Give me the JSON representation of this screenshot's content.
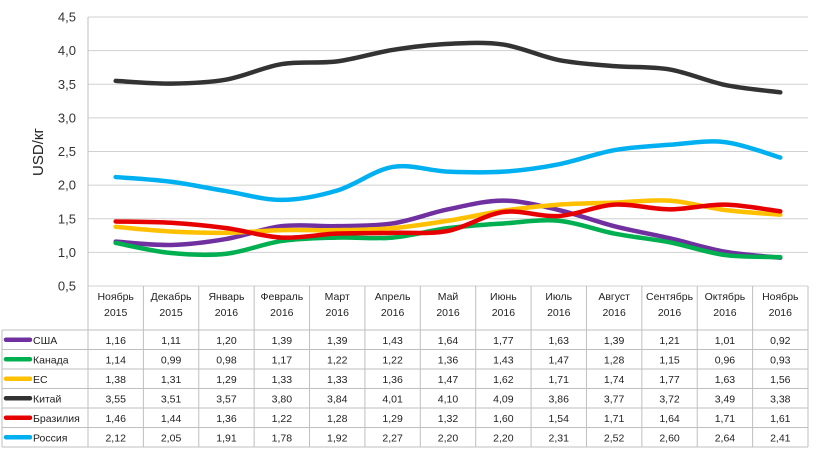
{
  "chart_data": {
    "type": "line",
    "title": "",
    "xlabel": "",
    "ylabel": "USD/кг",
    "ylim": [
      0.5,
      4.5
    ],
    "yticks": [
      "0,5",
      "1,0",
      "1,5",
      "2,0",
      "2,5",
      "3,0",
      "3,5",
      "4,0",
      "4,5"
    ],
    "grid": true,
    "legend": "table-below",
    "categories": [
      [
        "Ноябрь",
        "2015"
      ],
      [
        "Декабрь",
        "2015"
      ],
      [
        "Январь",
        "2016"
      ],
      [
        "Февраль",
        "2016"
      ],
      [
        "Март",
        "2016"
      ],
      [
        "Апрель",
        "2016"
      ],
      [
        "Май",
        "2016"
      ],
      [
        "Июнь",
        "2016"
      ],
      [
        "Июль",
        "2016"
      ],
      [
        "Август",
        "2016"
      ],
      [
        "Сентябрь",
        "2016"
      ],
      [
        "Октябрь",
        "2016"
      ],
      [
        "Ноябрь",
        "2016"
      ]
    ],
    "series": [
      {
        "name": "США",
        "color": "#7030A0",
        "values": [
          1.16,
          1.11,
          1.2,
          1.39,
          1.39,
          1.43,
          1.64,
          1.77,
          1.63,
          1.39,
          1.21,
          1.01,
          0.92
        ],
        "labels": [
          "1,16",
          "1,11",
          "1,20",
          "1,39",
          "1,39",
          "1,43",
          "1,64",
          "1,77",
          "1,63",
          "1,39",
          "1,21",
          "1,01",
          "0,92"
        ]
      },
      {
        "name": "Канада",
        "color": "#00B050",
        "values": [
          1.14,
          0.99,
          0.98,
          1.17,
          1.22,
          1.22,
          1.36,
          1.43,
          1.47,
          1.28,
          1.15,
          0.96,
          0.93
        ],
        "labels": [
          "1,14",
          "0,99",
          "0,98",
          "1,17",
          "1,22",
          "1,22",
          "1,36",
          "1,43",
          "1,47",
          "1,28",
          "1,15",
          "0,96",
          "0,93"
        ]
      },
      {
        "name": "ЕС",
        "color": "#FFC000",
        "values": [
          1.38,
          1.31,
          1.29,
          1.33,
          1.33,
          1.36,
          1.47,
          1.62,
          1.71,
          1.74,
          1.77,
          1.63,
          1.56
        ],
        "labels": [
          "1,38",
          "1,31",
          "1,29",
          "1,33",
          "1,33",
          "1,36",
          "1,47",
          "1,62",
          "1,71",
          "1,74",
          "1,77",
          "1,63",
          "1,56"
        ]
      },
      {
        "name": "Китай",
        "color": "#333333",
        "values": [
          3.55,
          3.51,
          3.57,
          3.8,
          3.84,
          4.01,
          4.1,
          4.09,
          3.86,
          3.77,
          3.72,
          3.49,
          3.38
        ],
        "labels": [
          "3,55",
          "3,51",
          "3,57",
          "3,80",
          "3,84",
          "4,01",
          "4,10",
          "4,09",
          "3,86",
          "3,77",
          "3,72",
          "3,49",
          "3,38"
        ]
      },
      {
        "name": "Бразилия",
        "color": "#E60000",
        "values": [
          1.46,
          1.44,
          1.36,
          1.22,
          1.28,
          1.29,
          1.32,
          1.6,
          1.54,
          1.71,
          1.64,
          1.71,
          1.61
        ],
        "labels": [
          "1,46",
          "1,44",
          "1,36",
          "1,22",
          "1,28",
          "1,29",
          "1,32",
          "1,60",
          "1,54",
          "1,71",
          "1,64",
          "1,71",
          "1,61"
        ]
      },
      {
        "name": "Россия",
        "color": "#00B0F0",
        "values": [
          2.12,
          2.05,
          1.91,
          1.78,
          1.92,
          2.27,
          2.2,
          2.2,
          2.31,
          2.52,
          2.6,
          2.64,
          2.41
        ],
        "labels": [
          "2,12",
          "2,05",
          "1,91",
          "1,78",
          "1,92",
          "2,27",
          "2,20",
          "2,20",
          "2,31",
          "2,52",
          "2,60",
          "2,64",
          "2,41"
        ]
      }
    ]
  }
}
